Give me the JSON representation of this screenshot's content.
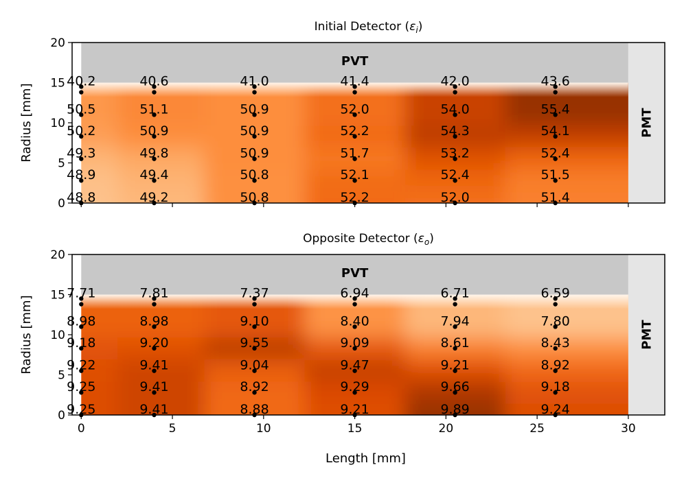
{
  "chart_data": [
    {
      "type": "heatmap",
      "title": "Initial Detector (",
      "title_symbol": "ε",
      "title_subscript": "i",
      "title_close": ")",
      "ylabel": "Radius [mm]",
      "xlabel": "",
      "xlim": [
        -0.5,
        32
      ],
      "ylim": [
        0,
        20
      ],
      "yticks": [
        "0",
        "5",
        "10",
        "15",
        "20"
      ],
      "xticks": [
        "0",
        "5",
        "10",
        "15",
        "20",
        "25",
        "30"
      ],
      "show_xtick_labels": false,
      "pvt_label": "PVT",
      "pmt_label": "PMT",
      "scintillator_length": 30,
      "scintillator_radius": 15,
      "pvt_radius": 20,
      "x_positions": [
        0,
        4,
        9.5,
        15,
        20.5,
        26
      ],
      "radius_positions": [
        14.5,
        11.0,
        8.3,
        5.5,
        2.8,
        0
      ],
      "marker_positions": [
        0,
        2.8,
        5.5,
        8.3,
        11.0,
        13.8,
        14.5
      ],
      "values": [
        [
          "40.2",
          "40.6",
          "41.0",
          "41.4",
          "42.0",
          "43.6"
        ],
        [
          "50.5",
          "51.1",
          "50.9",
          "52.0",
          "54.0",
          "55.4"
        ],
        [
          "50.2",
          "50.9",
          "50.9",
          "52.2",
          "54.3",
          "54.1"
        ],
        [
          "49.3",
          "49.8",
          "50.9",
          "51.7",
          "53.2",
          "52.4"
        ],
        [
          "48.9",
          "49.4",
          "50.8",
          "52.1",
          "52.4",
          "51.5"
        ],
        [
          "48.8",
          "49.2",
          "50.8",
          "52.2",
          "52.0",
          "51.4"
        ]
      ],
      "colormap": "Oranges"
    },
    {
      "type": "heatmap",
      "title": "Opposite Detector (",
      "title_symbol": "ε",
      "title_subscript": "o",
      "title_close": ")",
      "ylabel": "Radius [mm]",
      "xlabel": "Length [mm]",
      "xlim": [
        -0.5,
        32
      ],
      "ylim": [
        0,
        20
      ],
      "yticks": [
        "0",
        "5",
        "10",
        "15",
        "20"
      ],
      "xticks": [
        "0",
        "5",
        "10",
        "15",
        "20",
        "25",
        "30"
      ],
      "show_xtick_labels": true,
      "pvt_label": "PVT",
      "pmt_label": "PMT",
      "scintillator_length": 30,
      "scintillator_radius": 15,
      "pvt_radius": 20,
      "x_positions": [
        0,
        4,
        9.5,
        15,
        20.5,
        26
      ],
      "radius_positions": [
        14.5,
        11.0,
        8.3,
        5.5,
        2.8,
        0
      ],
      "marker_positions": [
        0,
        2.8,
        5.5,
        8.3,
        11.0,
        13.8,
        14.5
      ],
      "values": [
        [
          "7.71",
          "7.81",
          "7.37",
          "6.94",
          "6.71",
          "6.59"
        ],
        [
          "8.98",
          "8.98",
          "9.10",
          "8.40",
          "7.94",
          "7.80"
        ],
        [
          "9.18",
          "9.20",
          "9.55",
          "9.09",
          "8.61",
          "8.43"
        ],
        [
          "9.22",
          "9.41",
          "9.04",
          "9.47",
          "9.21",
          "8.92"
        ],
        [
          "9.25",
          "9.41",
          "8.92",
          "9.29",
          "9.66",
          "9.18"
        ],
        [
          "9.25",
          "9.41",
          "8.88",
          "9.21",
          "9.89",
          "9.24"
        ]
      ],
      "colormap": "Oranges"
    }
  ]
}
